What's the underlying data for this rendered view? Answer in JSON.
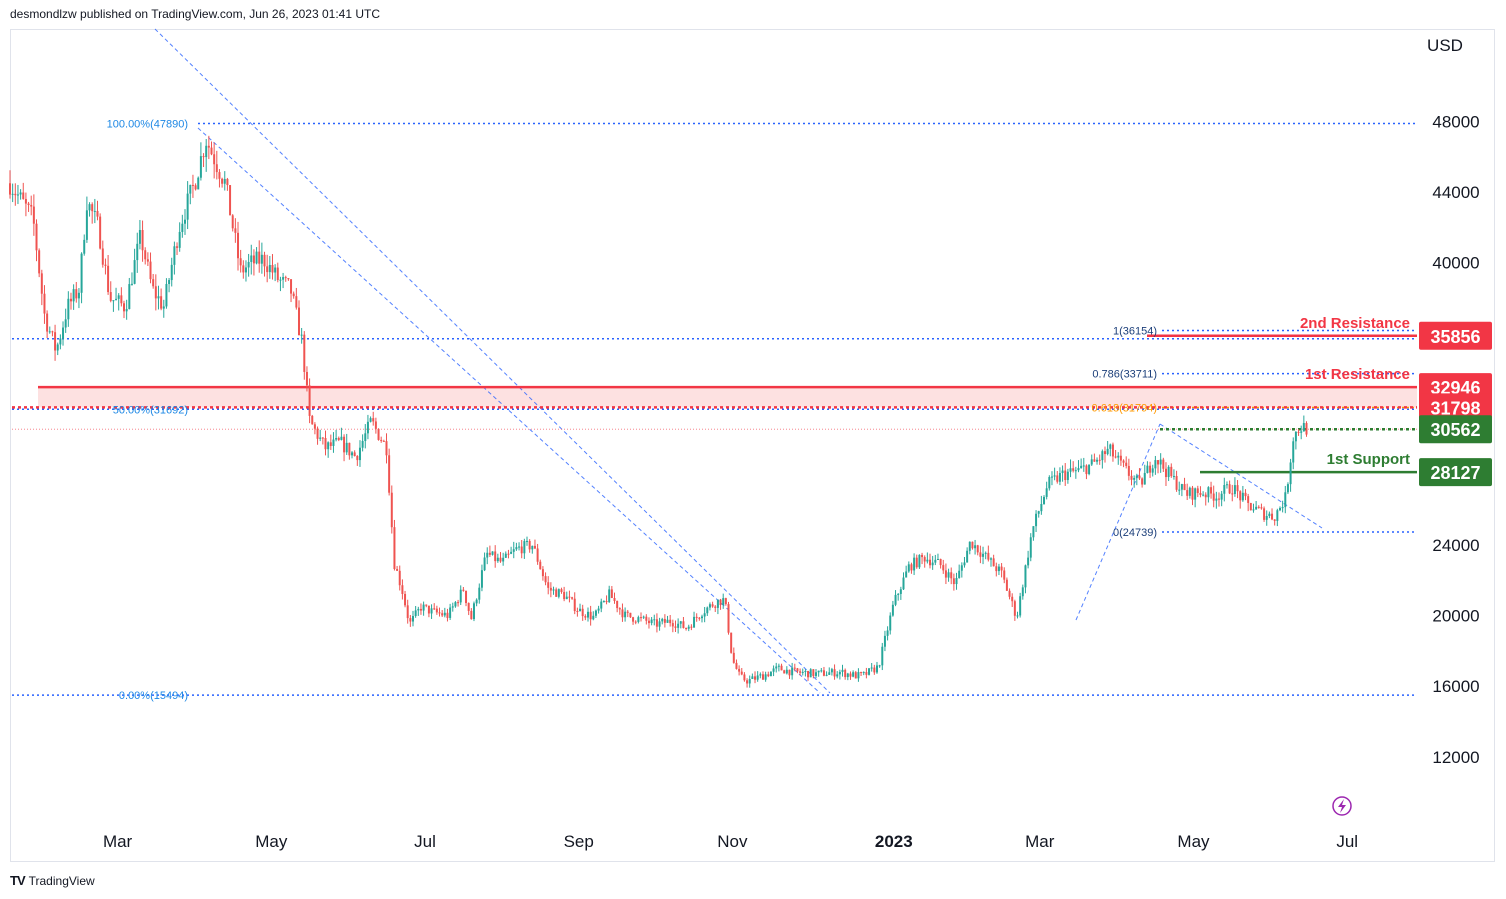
{
  "header": {
    "published": "desmondlzw published on TradingView.com, Jun 26, 2023 01:41 UTC"
  },
  "footer": {
    "brand": "TradingView",
    "logo": "TV"
  },
  "colors": {
    "up": "#26a69a",
    "down": "#ef5350",
    "fib": "#2962ff",
    "fib_text": "#1e88e5",
    "resistance": "#f23645",
    "support": "#2e7d32",
    "zone": "#fde1e1",
    "orange": "#ff9800"
  },
  "chart_data": {
    "type": "candlestick",
    "currency": "USD",
    "ylim": [
      9000,
      51500
    ],
    "y_ticks": [
      48000,
      44000,
      40000,
      36000,
      32000,
      28000,
      24000,
      20000,
      16000,
      12000
    ],
    "y_tick_labels": [
      "48000",
      "44000",
      "40000",
      "",
      "",
      "",
      "24000",
      "20000",
      "16000",
      "12000"
    ],
    "x_ticks": [
      {
        "label": "Mar",
        "m": 1.4
      },
      {
        "label": "May",
        "m": 3.4
      },
      {
        "label": "Jul",
        "m": 5.4
      },
      {
        "label": "Sep",
        "m": 7.4
      },
      {
        "label": "Nov",
        "m": 9.4
      },
      {
        "label": "2023",
        "m": 11.5
      },
      {
        "label": "Mar",
        "m": 13.4
      },
      {
        "label": "May",
        "m": 15.4
      },
      {
        "label": "Jul",
        "m": 17.4
      }
    ],
    "price_path": [
      [
        0.0,
        44500
      ],
      [
        0.3,
        42500
      ],
      [
        0.45,
        37000
      ],
      [
        0.6,
        35000
      ],
      [
        0.75,
        37500
      ],
      [
        0.9,
        38500
      ],
      [
        1.0,
        43500
      ],
      [
        1.15,
        42000
      ],
      [
        1.3,
        38000
      ],
      [
        1.5,
        37500
      ],
      [
        1.7,
        41500
      ],
      [
        1.85,
        38500
      ],
      [
        2.0,
        37500
      ],
      [
        2.2,
        42000
      ],
      [
        2.4,
        44500
      ],
      [
        2.55,
        47000
      ],
      [
        2.65,
        46000
      ],
      [
        2.8,
        44500
      ],
      [
        3.0,
        39500
      ],
      [
        3.15,
        40000
      ],
      [
        3.3,
        40200
      ],
      [
        3.5,
        39000
      ],
      [
        3.65,
        38500
      ],
      [
        3.8,
        35500
      ],
      [
        3.9,
        31000
      ],
      [
        4.1,
        29500
      ],
      [
        4.3,
        29800
      ],
      [
        4.5,
        29000
      ],
      [
        4.7,
        31000
      ],
      [
        4.9,
        29500
      ],
      [
        5.0,
        23000
      ],
      [
        5.1,
        21500
      ],
      [
        5.2,
        19500
      ],
      [
        5.35,
        20500
      ],
      [
        5.5,
        20200
      ],
      [
        5.7,
        20000
      ],
      [
        5.9,
        21500
      ],
      [
        6.0,
        19800
      ],
      [
        6.2,
        23500
      ],
      [
        6.4,
        23000
      ],
      [
        6.6,
        23800
      ],
      [
        6.8,
        24000
      ],
      [
        7.0,
        21500
      ],
      [
        7.2,
        21200
      ],
      [
        7.4,
        20300
      ],
      [
        7.6,
        19900
      ],
      [
        7.8,
        21200
      ],
      [
        8.0,
        20000
      ],
      [
        8.2,
        19800
      ],
      [
        8.4,
        19500
      ],
      [
        8.6,
        19700
      ],
      [
        8.8,
        19300
      ],
      [
        9.0,
        20200
      ],
      [
        9.2,
        20800
      ],
      [
        9.3,
        20900
      ],
      [
        9.4,
        17500
      ],
      [
        9.5,
        16500
      ],
      [
        9.6,
        16300
      ],
      [
        9.8,
        16600
      ],
      [
        10.0,
        17000
      ],
      [
        10.2,
        16800
      ],
      [
        10.5,
        16700
      ],
      [
        10.8,
        16800
      ],
      [
        11.0,
        16600
      ],
      [
        11.1,
        16600
      ],
      [
        11.3,
        17100
      ],
      [
        11.5,
        20700
      ],
      [
        11.7,
        22800
      ],
      [
        11.9,
        23300
      ],
      [
        12.1,
        22900
      ],
      [
        12.3,
        21800
      ],
      [
        12.5,
        24200
      ],
      [
        12.7,
        23300
      ],
      [
        12.9,
        22400
      ],
      [
        13.1,
        19900
      ],
      [
        13.3,
        24800
      ],
      [
        13.5,
        27400
      ],
      [
        13.7,
        28000
      ],
      [
        13.9,
        28200
      ],
      [
        14.1,
        28600
      ],
      [
        14.3,
        29400
      ],
      [
        14.5,
        28300
      ],
      [
        14.7,
        27400
      ],
      [
        14.9,
        29000
      ],
      [
        15.1,
        27900
      ],
      [
        15.3,
        26900
      ],
      [
        15.5,
        27000
      ],
      [
        15.7,
        26800
      ],
      [
        15.9,
        27300
      ],
      [
        16.1,
        26300
      ],
      [
        16.3,
        25800
      ],
      [
        16.45,
        25600
      ],
      [
        16.6,
        26700
      ],
      [
        16.7,
        30200
      ],
      [
        16.8,
        30700
      ],
      [
        16.9,
        30562
      ]
    ],
    "fib_left": {
      "levels": [
        {
          "label": "100.00%(47890)",
          "value": 47890
        },
        {
          "label": "50.00%(31692)",
          "value": 31692
        },
        {
          "label": "0.00%(15494)",
          "value": 15494
        }
      ]
    },
    "fib_right": {
      "levels": [
        {
          "label": "1(36154)",
          "value": 36154
        },
        {
          "label": "0.786(33711)",
          "value": 33711
        },
        {
          "label": "0.618(31794)",
          "value": 31794
        },
        {
          "label": "0(24739)",
          "value": 24739
        }
      ]
    },
    "levels": [
      {
        "name": "2nd Resistance",
        "value": 35856,
        "kind": "resistance"
      },
      {
        "name": "1st Resistance",
        "value": 32946,
        "kind": "resistance"
      },
      {
        "name": "",
        "value": 31798,
        "kind": "resistance"
      },
      {
        "name": "",
        "value": 30562,
        "kind": "support"
      },
      {
        "name": "1st Support",
        "value": 28127,
        "kind": "support"
      }
    ],
    "price_badges": [
      {
        "text": "35856",
        "value": 35856,
        "color": "#f23645"
      },
      {
        "text": "32946",
        "value": 32946,
        "color": "#f23645"
      },
      {
        "text": "31798",
        "value": 31798,
        "color": "#f23645"
      },
      {
        "text": "30562",
        "value": 30562,
        "color": "#2e7d32"
      },
      {
        "text": "28127",
        "value": 28127,
        "color": "#2e7d32"
      }
    ]
  }
}
